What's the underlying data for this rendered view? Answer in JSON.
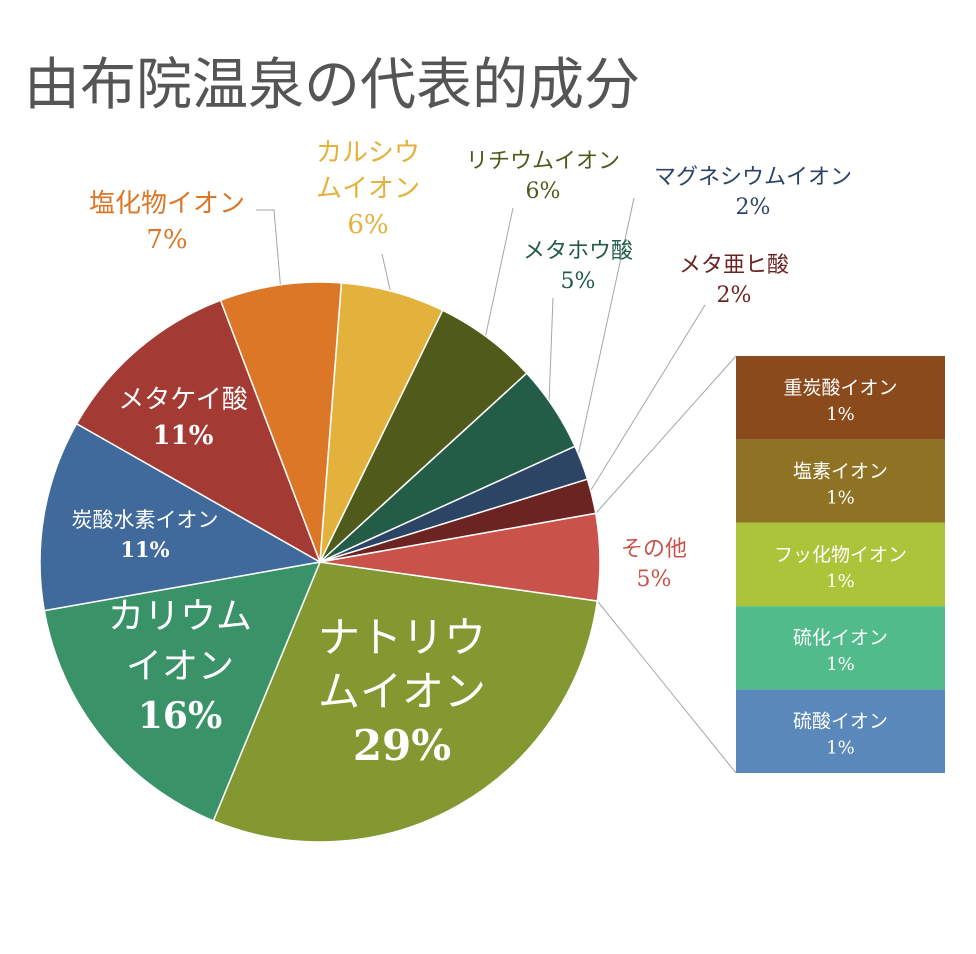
{
  "chart_data": {
    "type": "pie",
    "title": "由布院温泉の代表的成分",
    "slices": [
      {
        "name": "ナトリウムイオン",
        "label_lines": [
          "ナトリウ",
          "ムイオン"
        ],
        "pct": "29%",
        "value": 29,
        "color": "#839830"
      },
      {
        "name": "カリウムイオン",
        "label_lines": [
          "カリウム",
          "イオン"
        ],
        "pct": "16%",
        "value": 16,
        "color": "#3a9269"
      },
      {
        "name": "炭酸水素イオン",
        "label_lines": [
          "炭酸水素イオン"
        ],
        "pct": "11%",
        "value": 11,
        "color": "#3f6a9b"
      },
      {
        "name": "メタケイ酸",
        "label_lines": [
          "メタケイ酸"
        ],
        "pct": "11%",
        "value": 11,
        "color": "#a33a33"
      },
      {
        "name": "塩化物イオン",
        "label_lines": [
          "塩化物イオン"
        ],
        "pct": "7%",
        "value": 7,
        "color": "#db7727"
      },
      {
        "name": "カルシウムイオン",
        "label_lines": [
          "カルシウ",
          "ムイオン"
        ],
        "pct": "6%",
        "value": 6,
        "color": "#e3b23c"
      },
      {
        "name": "リチウムイオン",
        "label_lines": [
          "リチウムイオン"
        ],
        "pct": "6%",
        "value": 6,
        "color": "#4f5a1b"
      },
      {
        "name": "メタホウ酸",
        "label_lines": [
          "メタホウ酸"
        ],
        "pct": "5%",
        "value": 5,
        "color": "#235c47"
      },
      {
        "name": "マグネシウムイオン",
        "label_lines": [
          "マグネシウムイオン"
        ],
        "pct": "2%",
        "value": 2,
        "color": "#2c4565"
      },
      {
        "name": "メタ亜ヒ酸",
        "label_lines": [
          "メタ亜ヒ酸"
        ],
        "pct": "2%",
        "value": 2,
        "color": "#6b2422"
      },
      {
        "name": "その他",
        "label_lines": [
          "その他"
        ],
        "pct": "5%",
        "value": 5,
        "color": "#c9534a"
      }
    ],
    "other_breakdown": [
      {
        "name": "重炭酸イオン",
        "pct": "1%",
        "value": 1,
        "color": "#8b4a1b"
      },
      {
        "name": "塩素イオン",
        "pct": "1%",
        "value": 1,
        "color": "#8f7224"
      },
      {
        "name": "フッ化物イオン",
        "pct": "1%",
        "value": 1,
        "color": "#abc43a"
      },
      {
        "name": "硫化イオン",
        "pct": "1%",
        "value": 1,
        "color": "#52bb8b"
      },
      {
        "name": "硫酸イオン",
        "pct": "1%",
        "value": 1,
        "color": "#5a88ba"
      }
    ]
  }
}
